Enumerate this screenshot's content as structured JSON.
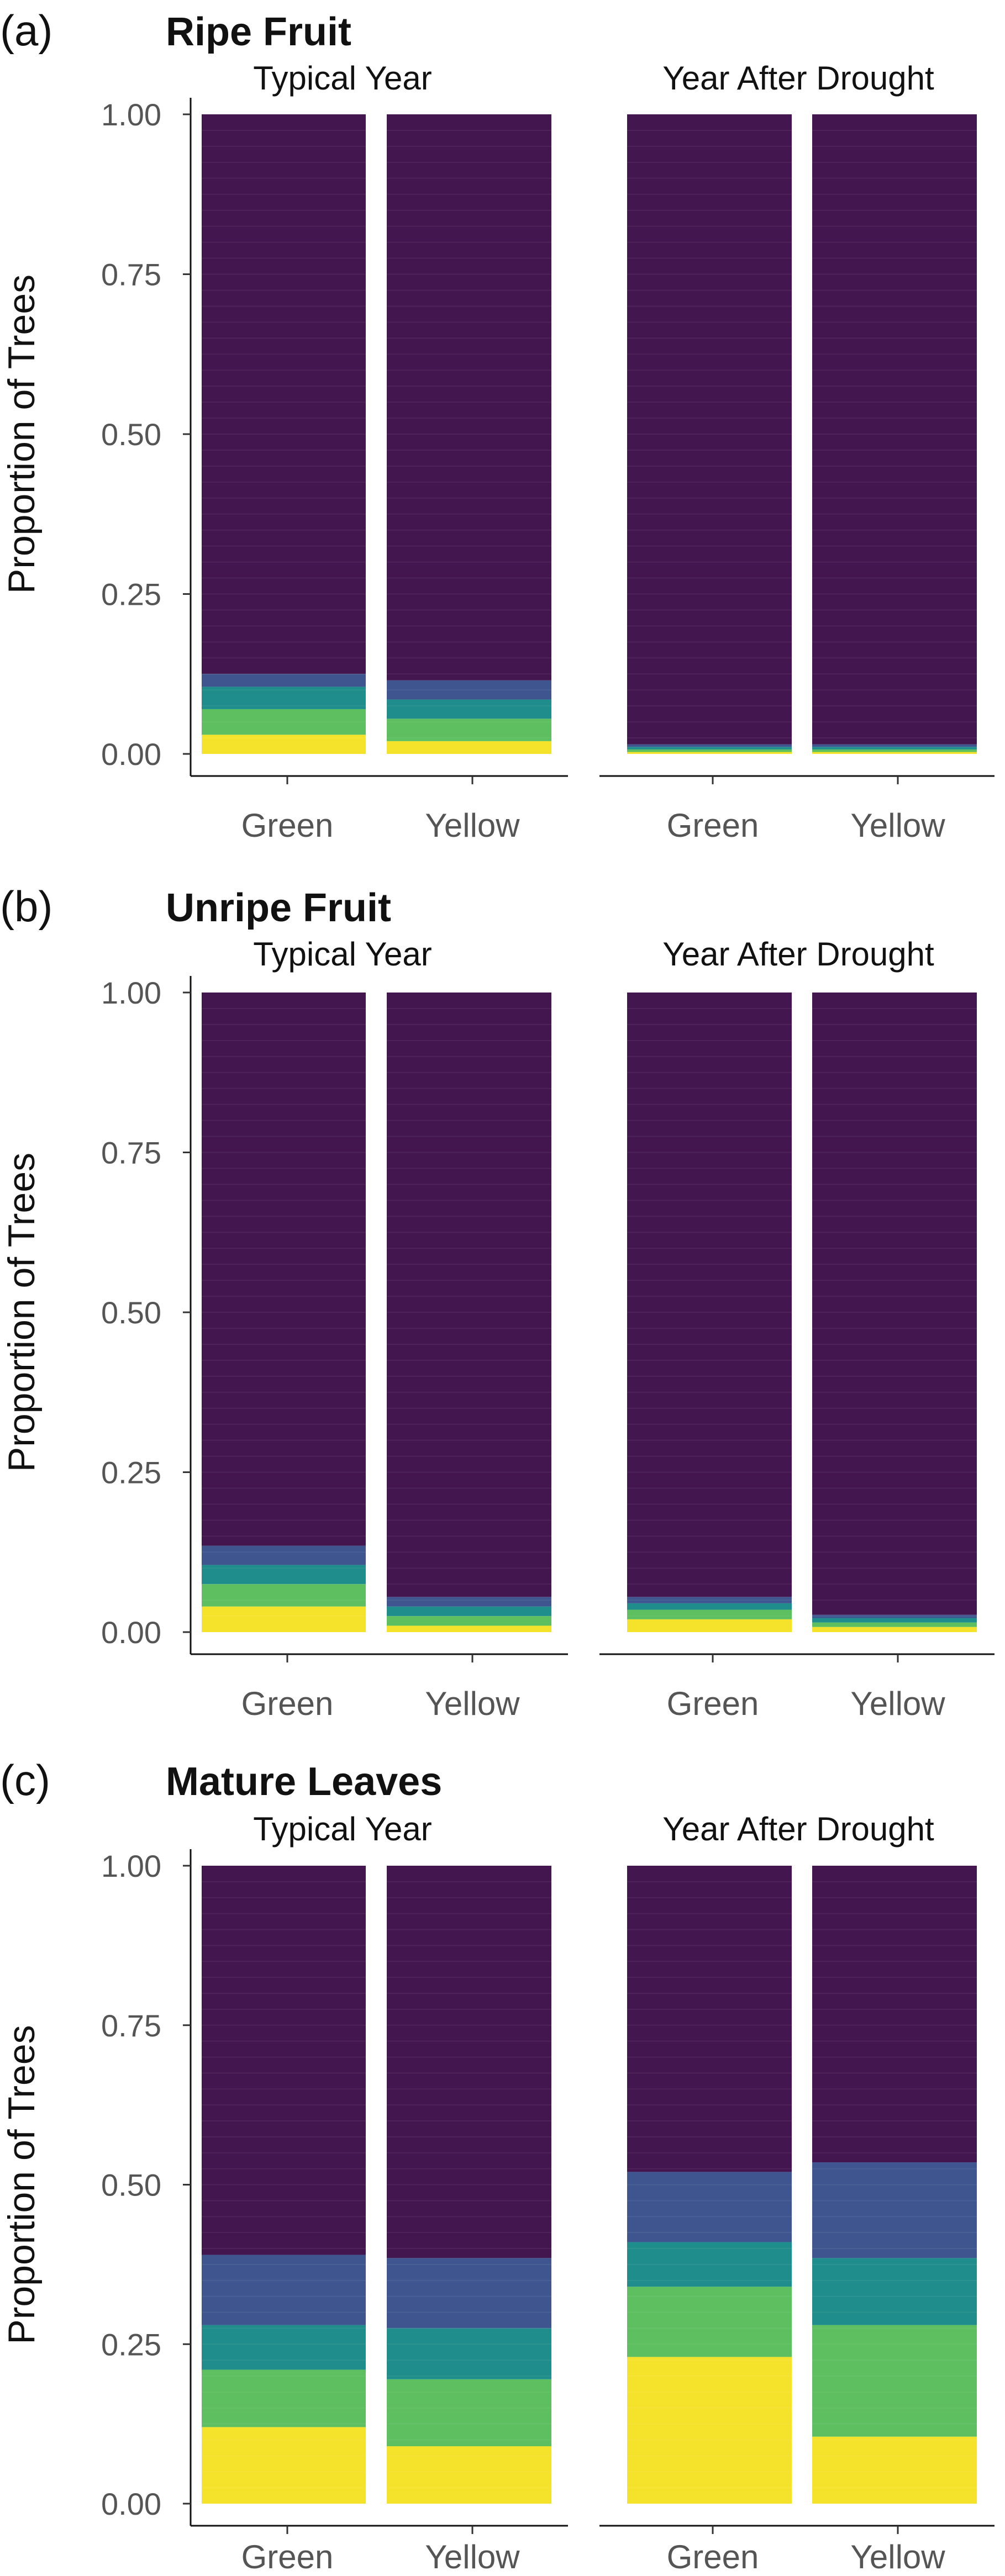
{
  "colors": {
    "purple": "#43164f",
    "blue": "#3e5590",
    "teal": "#1f8d8b",
    "green": "#5dbf60",
    "yellow": "#f5e22b"
  },
  "chart_data": [
    {
      "type": "bar",
      "stacked": true,
      "panel_letter": "(a)",
      "title": "Ripe Fruit",
      "ylabel": "Proportion of Trees",
      "ylim": [
        0,
        1
      ],
      "yticks": [
        "0.00",
        "0.25",
        "0.50",
        "0.75",
        "1.00"
      ],
      "facets": [
        {
          "label": "Typical Year",
          "categories": [
            "Green",
            "Yellow"
          ],
          "stacks": [
            [
              {
                "value": 0.03,
                "color": "yellow"
              },
              {
                "value": 0.04,
                "color": "green"
              },
              {
                "value": 0.035,
                "color": "teal"
              },
              {
                "value": 0.02,
                "color": "blue"
              },
              {
                "value": 0.875,
                "color": "purple"
              }
            ],
            [
              {
                "value": 0.02,
                "color": "yellow"
              },
              {
                "value": 0.035,
                "color": "green"
              },
              {
                "value": 0.03,
                "color": "teal"
              },
              {
                "value": 0.03,
                "color": "blue"
              },
              {
                "value": 0.885,
                "color": "purple"
              }
            ]
          ]
        },
        {
          "label": "Year After Drought",
          "categories": [
            "Green",
            "Yellow"
          ],
          "stacks": [
            [
              {
                "value": 0.003,
                "color": "yellow"
              },
              {
                "value": 0.004,
                "color": "green"
              },
              {
                "value": 0.004,
                "color": "teal"
              },
              {
                "value": 0.004,
                "color": "blue"
              },
              {
                "value": 0.985,
                "color": "purple"
              }
            ],
            [
              {
                "value": 0.003,
                "color": "yellow"
              },
              {
                "value": 0.004,
                "color": "green"
              },
              {
                "value": 0.004,
                "color": "teal"
              },
              {
                "value": 0.004,
                "color": "blue"
              },
              {
                "value": 0.985,
                "color": "purple"
              }
            ]
          ]
        }
      ]
    },
    {
      "type": "bar",
      "stacked": true,
      "panel_letter": "(b)",
      "title": "Unripe Fruit",
      "ylabel": "Proportion of Trees",
      "ylim": [
        0,
        1
      ],
      "yticks": [
        "0.00",
        "0.25",
        "0.50",
        "0.75",
        "1.00"
      ],
      "facets": [
        {
          "label": "Typical Year",
          "categories": [
            "Green",
            "Yellow"
          ],
          "stacks": [
            [
              {
                "value": 0.04,
                "color": "yellow"
              },
              {
                "value": 0.035,
                "color": "green"
              },
              {
                "value": 0.03,
                "color": "teal"
              },
              {
                "value": 0.03,
                "color": "blue"
              },
              {
                "value": 0.865,
                "color": "purple"
              }
            ],
            [
              {
                "value": 0.01,
                "color": "yellow"
              },
              {
                "value": 0.015,
                "color": "green"
              },
              {
                "value": 0.015,
                "color": "teal"
              },
              {
                "value": 0.015,
                "color": "blue"
              },
              {
                "value": 0.945,
                "color": "purple"
              }
            ]
          ]
        },
        {
          "label": "Year After Drought",
          "categories": [
            "Green",
            "Yellow"
          ],
          "stacks": [
            [
              {
                "value": 0.02,
                "color": "yellow"
              },
              {
                "value": 0.015,
                "color": "green"
              },
              {
                "value": 0.01,
                "color": "teal"
              },
              {
                "value": 0.01,
                "color": "blue"
              },
              {
                "value": 0.945,
                "color": "purple"
              }
            ],
            [
              {
                "value": 0.008,
                "color": "yellow"
              },
              {
                "value": 0.007,
                "color": "green"
              },
              {
                "value": 0.007,
                "color": "teal"
              },
              {
                "value": 0.005,
                "color": "blue"
              },
              {
                "value": 0.973,
                "color": "purple"
              }
            ]
          ]
        }
      ]
    },
    {
      "type": "bar",
      "stacked": true,
      "panel_letter": "(c)",
      "title": "Mature Leaves",
      "ylabel": "Proportion of Trees",
      "ylim": [
        0,
        1
      ],
      "yticks": [
        "0.00",
        "0.25",
        "0.50",
        "0.75",
        "1.00"
      ],
      "facets": [
        {
          "label": "Typical Year",
          "categories": [
            "Green",
            "Yellow"
          ],
          "stacks": [
            [
              {
                "value": 0.12,
                "color": "yellow"
              },
              {
                "value": 0.09,
                "color": "green"
              },
              {
                "value": 0.07,
                "color": "teal"
              },
              {
                "value": 0.11,
                "color": "blue"
              },
              {
                "value": 0.61,
                "color": "purple"
              }
            ],
            [
              {
                "value": 0.09,
                "color": "yellow"
              },
              {
                "value": 0.105,
                "color": "green"
              },
              {
                "value": 0.08,
                "color": "teal"
              },
              {
                "value": 0.11,
                "color": "blue"
              },
              {
                "value": 0.615,
                "color": "purple"
              }
            ]
          ]
        },
        {
          "label": "Year After Drought",
          "categories": [
            "Green",
            "Yellow"
          ],
          "stacks": [
            [
              {
                "value": 0.23,
                "color": "yellow"
              },
              {
                "value": 0.11,
                "color": "green"
              },
              {
                "value": 0.07,
                "color": "teal"
              },
              {
                "value": 0.11,
                "color": "blue"
              },
              {
                "value": 0.48,
                "color": "purple"
              }
            ],
            [
              {
                "value": 0.105,
                "color": "yellow"
              },
              {
                "value": 0.175,
                "color": "green"
              },
              {
                "value": 0.105,
                "color": "teal"
              },
              {
                "value": 0.15,
                "color": "blue"
              },
              {
                "value": 0.465,
                "color": "purple"
              }
            ]
          ]
        }
      ]
    }
  ]
}
